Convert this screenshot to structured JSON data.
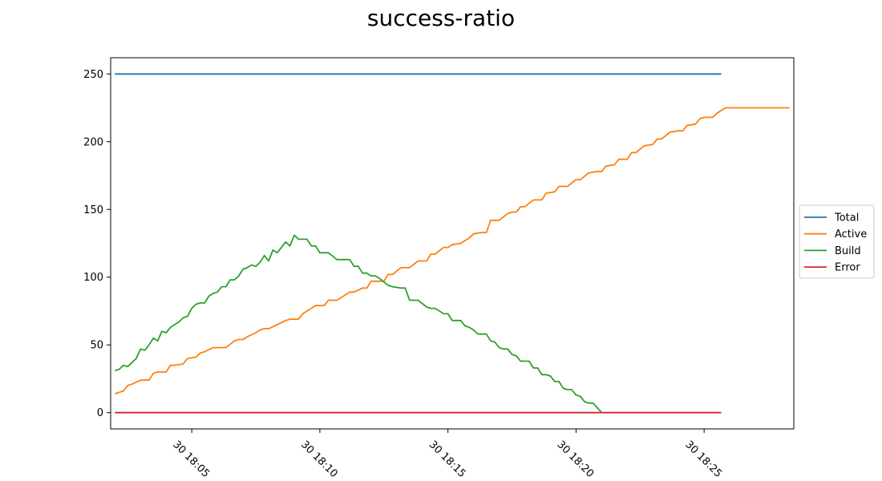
{
  "chart_data": {
    "type": "line",
    "title": "success-ratio",
    "xlabel": "",
    "ylabel": "",
    "x_unit": "time (day 30, HH:MM)",
    "xlim": [
      "18:01:50",
      "18:28:30"
    ],
    "ylim": [
      -12,
      262
    ],
    "xticks": [
      "30 18:05",
      "30 18:10",
      "30 18:15",
      "30 18:20",
      "30 18:25"
    ],
    "yticks": [
      0,
      50,
      100,
      150,
      200,
      250
    ],
    "grid": false,
    "legend_position": "center-right outside",
    "series": [
      {
        "name": "Total",
        "color": "#1f77b4",
        "points": [
          [
            "18:02:00",
            250
          ],
          [
            "18:25:40",
            250
          ]
        ]
      },
      {
        "name": "Active",
        "color": "#ff7f0e",
        "points": [
          [
            "18:02:00",
            14
          ],
          [
            "18:02:20",
            16
          ],
          [
            "18:02:30",
            20
          ],
          [
            "18:02:40",
            21
          ],
          [
            "18:03:00",
            24
          ],
          [
            "18:03:20",
            24
          ],
          [
            "18:03:30",
            29
          ],
          [
            "18:03:40",
            30
          ],
          [
            "18:04:00",
            30
          ],
          [
            "18:04:10",
            35
          ],
          [
            "18:04:20",
            35
          ],
          [
            "18:04:40",
            36
          ],
          [
            "18:04:50",
            40
          ],
          [
            "18:05:10",
            41
          ],
          [
            "18:05:20",
            44
          ],
          [
            "18:05:30",
            45
          ],
          [
            "18:05:50",
            48
          ],
          [
            "18:06:20",
            48
          ],
          [
            "18:06:40",
            53
          ],
          [
            "18:06:50",
            54
          ],
          [
            "18:07:00",
            54
          ],
          [
            "18:07:10",
            56
          ],
          [
            "18:07:30",
            59
          ],
          [
            "18:07:40",
            61
          ],
          [
            "18:07:50",
            62
          ],
          [
            "18:08:00",
            62
          ],
          [
            "18:08:20",
            65
          ],
          [
            "18:08:40",
            68
          ],
          [
            "18:08:50",
            69
          ],
          [
            "18:09:10",
            69
          ],
          [
            "18:09:20",
            73
          ],
          [
            "18:09:40",
            77
          ],
          [
            "18:09:50",
            79
          ],
          [
            "18:10:10",
            79
          ],
          [
            "18:10:20",
            83
          ],
          [
            "18:10:40",
            83
          ],
          [
            "18:11:00",
            87
          ],
          [
            "18:11:10",
            89
          ],
          [
            "18:11:20",
            89
          ],
          [
            "18:11:40",
            92
          ],
          [
            "18:11:50",
            92
          ],
          [
            "18:12:00",
            97
          ],
          [
            "18:12:30",
            97
          ],
          [
            "18:12:40",
            102
          ],
          [
            "18:12:50",
            102
          ],
          [
            "18:13:10",
            107
          ],
          [
            "18:13:30",
            107
          ],
          [
            "18:13:50",
            112
          ],
          [
            "18:14:10",
            112
          ],
          [
            "18:14:20",
            117
          ],
          [
            "18:14:30",
            117
          ],
          [
            "18:14:50",
            122
          ],
          [
            "18:15:00",
            122
          ],
          [
            "18:15:10",
            124
          ],
          [
            "18:15:30",
            125
          ],
          [
            "18:15:50",
            129
          ],
          [
            "18:16:00",
            132
          ],
          [
            "18:16:20",
            133
          ],
          [
            "18:16:30",
            133
          ],
          [
            "18:16:40",
            142
          ],
          [
            "18:17:00",
            142
          ],
          [
            "18:17:20",
            147
          ],
          [
            "18:17:30",
            148
          ],
          [
            "18:17:40",
            148
          ],
          [
            "18:17:50",
            152
          ],
          [
            "18:18:00",
            152
          ],
          [
            "18:18:20",
            157
          ],
          [
            "18:18:40",
            157
          ],
          [
            "18:18:50",
            162
          ],
          [
            "18:19:10",
            163
          ],
          [
            "18:19:20",
            167
          ],
          [
            "18:19:40",
            167
          ],
          [
            "18:20:00",
            172
          ],
          [
            "18:20:10",
            172
          ],
          [
            "18:20:30",
            177
          ],
          [
            "18:20:50",
            178
          ],
          [
            "18:21:00",
            178
          ],
          [
            "18:21:10",
            182
          ],
          [
            "18:21:30",
            183
          ],
          [
            "18:21:40",
            187
          ],
          [
            "18:22:00",
            187
          ],
          [
            "18:22:10",
            192
          ],
          [
            "18:22:20",
            192
          ],
          [
            "18:22:40",
            197
          ],
          [
            "18:23:00",
            198
          ],
          [
            "18:23:10",
            202
          ],
          [
            "18:23:20",
            202
          ],
          [
            "18:23:40",
            207
          ],
          [
            "18:24:00",
            208
          ],
          [
            "18:24:10",
            208
          ],
          [
            "18:24:20",
            212
          ],
          [
            "18:24:40",
            213
          ],
          [
            "18:24:50",
            217
          ],
          [
            "18:25:00",
            218
          ],
          [
            "18:25:20",
            218
          ],
          [
            "18:25:30",
            221
          ],
          [
            "18:25:50",
            225
          ],
          [
            "18:28:20",
            225
          ]
        ]
      },
      {
        "name": "Build",
        "color": "#2ca02c",
        "points": [
          [
            "18:02:00",
            31
          ],
          [
            "18:02:10",
            32
          ],
          [
            "18:02:20",
            35
          ],
          [
            "18:02:30",
            34
          ],
          [
            "18:02:40",
            37
          ],
          [
            "18:02:50",
            40
          ],
          [
            "18:03:00",
            47
          ],
          [
            "18:03:10",
            46
          ],
          [
            "18:03:20",
            50
          ],
          [
            "18:03:30",
            55
          ],
          [
            "18:03:40",
            53
          ],
          [
            "18:03:50",
            60
          ],
          [
            "18:04:00",
            59
          ],
          [
            "18:04:10",
            63
          ],
          [
            "18:04:20",
            65
          ],
          [
            "18:04:30",
            67
          ],
          [
            "18:04:40",
            70
          ],
          [
            "18:04:50",
            71
          ],
          [
            "18:05:00",
            77
          ],
          [
            "18:05:10",
            80
          ],
          [
            "18:05:20",
            81
          ],
          [
            "18:05:30",
            81
          ],
          [
            "18:05:40",
            86
          ],
          [
            "18:05:50",
            88
          ],
          [
            "18:06:00",
            89
          ],
          [
            "18:06:10",
            93
          ],
          [
            "18:06:20",
            93
          ],
          [
            "18:06:30",
            98
          ],
          [
            "18:06:40",
            98
          ],
          [
            "18:06:50",
            101
          ],
          [
            "18:07:00",
            106
          ],
          [
            "18:07:10",
            107
          ],
          [
            "18:07:20",
            109
          ],
          [
            "18:07:30",
            108
          ],
          [
            "18:07:40",
            111
          ],
          [
            "18:07:50",
            116
          ],
          [
            "18:08:00",
            112
          ],
          [
            "18:08:10",
            120
          ],
          [
            "18:08:20",
            118
          ],
          [
            "18:08:30",
            122
          ],
          [
            "18:08:40",
            126
          ],
          [
            "18:08:50",
            123
          ],
          [
            "18:09:00",
            131
          ],
          [
            "18:09:10",
            128
          ],
          [
            "18:09:30",
            128
          ],
          [
            "18:09:40",
            123
          ],
          [
            "18:09:50",
            123
          ],
          [
            "18:10:00",
            118
          ],
          [
            "18:10:20",
            118
          ],
          [
            "18:10:40",
            113
          ],
          [
            "18:11:00",
            113
          ],
          [
            "18:11:10",
            113
          ],
          [
            "18:11:20",
            108
          ],
          [
            "18:11:30",
            108
          ],
          [
            "18:11:40",
            103
          ],
          [
            "18:11:50",
            103
          ],
          [
            "18:12:00",
            101
          ],
          [
            "18:12:10",
            101
          ],
          [
            "18:12:20",
            99
          ],
          [
            "18:12:40",
            94
          ],
          [
            "18:12:50",
            93
          ],
          [
            "18:13:10",
            92
          ],
          [
            "18:13:20",
            92
          ],
          [
            "18:13:30",
            83
          ],
          [
            "18:13:50",
            83
          ],
          [
            "18:14:10",
            78
          ],
          [
            "18:14:20",
            77
          ],
          [
            "18:14:30",
            77
          ],
          [
            "18:14:50",
            73
          ],
          [
            "18:15:00",
            73
          ],
          [
            "18:15:10",
            68
          ],
          [
            "18:15:30",
            68
          ],
          [
            "18:15:40",
            64
          ],
          [
            "18:15:50",
            63
          ],
          [
            "18:16:00",
            61
          ],
          [
            "18:16:10",
            58
          ],
          [
            "18:16:30",
            58
          ],
          [
            "18:16:40",
            53
          ],
          [
            "18:16:50",
            52
          ],
          [
            "18:17:00",
            48
          ],
          [
            "18:17:10",
            47
          ],
          [
            "18:17:20",
            47
          ],
          [
            "18:17:30",
            43
          ],
          [
            "18:17:40",
            42
          ],
          [
            "18:17:50",
            38
          ],
          [
            "18:18:10",
            38
          ],
          [
            "18:18:20",
            33
          ],
          [
            "18:18:30",
            33
          ],
          [
            "18:18:40",
            28
          ],
          [
            "18:18:50",
            28
          ],
          [
            "18:19:00",
            27
          ],
          [
            "18:19:10",
            23
          ],
          [
            "18:19:20",
            23
          ],
          [
            "18:19:30",
            18
          ],
          [
            "18:19:40",
            17
          ],
          [
            "18:19:50",
            17
          ],
          [
            "18:20:00",
            13
          ],
          [
            "18:20:10",
            12
          ],
          [
            "18:20:20",
            8
          ],
          [
            "18:20:30",
            7
          ],
          [
            "18:20:40",
            7
          ],
          [
            "18:21:00",
            0
          ]
        ]
      },
      {
        "name": "Error",
        "color": "#d62728",
        "points": [
          [
            "18:02:00",
            0
          ],
          [
            "18:25:40",
            0
          ]
        ]
      }
    ]
  }
}
